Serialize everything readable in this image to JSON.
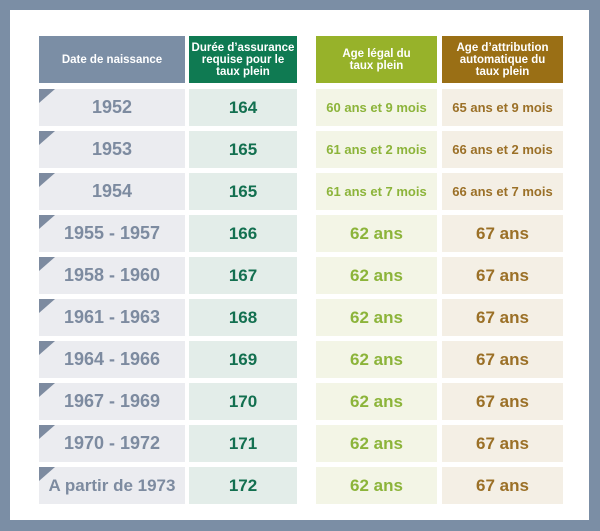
{
  "colors": {
    "frame": "#7b8ea5",
    "col1_header": "#7b8ea5",
    "col2_header": "#0f7a52",
    "col3_header": "#97b22a",
    "col4_header": "#9a6f15"
  },
  "headers": [
    "Date de naissance",
    "Durée d’assurance requise pour le taux plein",
    "Age légal du taux plein",
    "Age d’attribution automatique du taux plein"
  ],
  "rows": [
    {
      "birth": "1952",
      "quarters": "164",
      "legal_age": "60 ans et 9 mois",
      "auto_age": "65 ans et 9 mois"
    },
    {
      "birth": "1953",
      "quarters": "165",
      "legal_age": "61 ans et 2 mois",
      "auto_age": "66 ans et 2 mois"
    },
    {
      "birth": "1954",
      "quarters": "165",
      "legal_age": "61 ans et 7 mois",
      "auto_age": "66 ans et 7 mois"
    },
    {
      "birth": "1955 - 1957",
      "quarters": "166",
      "legal_age": "62 ans",
      "auto_age": "67 ans"
    },
    {
      "birth": "1958 - 1960",
      "quarters": "167",
      "legal_age": "62 ans",
      "auto_age": "67 ans"
    },
    {
      "birth": "1961 - 1963",
      "quarters": "168",
      "legal_age": "62 ans",
      "auto_age": "67 ans"
    },
    {
      "birth": "1964 - 1966",
      "quarters": "169",
      "legal_age": "62 ans",
      "auto_age": "67 ans"
    },
    {
      "birth": "1967 - 1969",
      "quarters": "170",
      "legal_age": "62 ans",
      "auto_age": "67 ans"
    },
    {
      "birth": "1970 - 1972",
      "quarters": "171",
      "legal_age": "62 ans",
      "auto_age": "67 ans"
    },
    {
      "birth": "A partir de 1973",
      "quarters": "172",
      "legal_age": "62 ans",
      "auto_age": "67 ans"
    }
  ]
}
